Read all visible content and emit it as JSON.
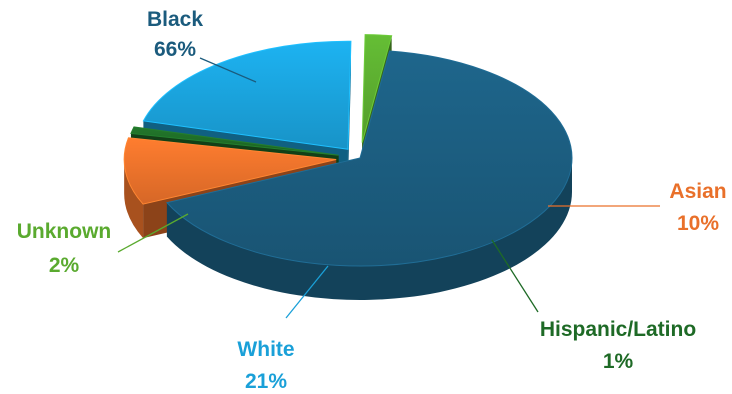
{
  "chart_data": {
    "type": "pie",
    "style": "3d-exploded",
    "legend": "none",
    "slices": [
      {
        "label": "Black",
        "value": 66,
        "value_label": "66%",
        "color": "#1b5b7d"
      },
      {
        "label": "Asian",
        "value": 10,
        "value_label": "10%",
        "color": "#e9702a"
      },
      {
        "label": "Hispanic/Latino",
        "value": 1,
        "value_label": "1%",
        "color": "#1e6a26"
      },
      {
        "label": "White",
        "value": 21,
        "value_label": "21%",
        "color": "#1aa0d8"
      },
      {
        "label": "Unknown",
        "value": 2,
        "value_label": "2%",
        "color": "#5aaa2f"
      }
    ]
  }
}
